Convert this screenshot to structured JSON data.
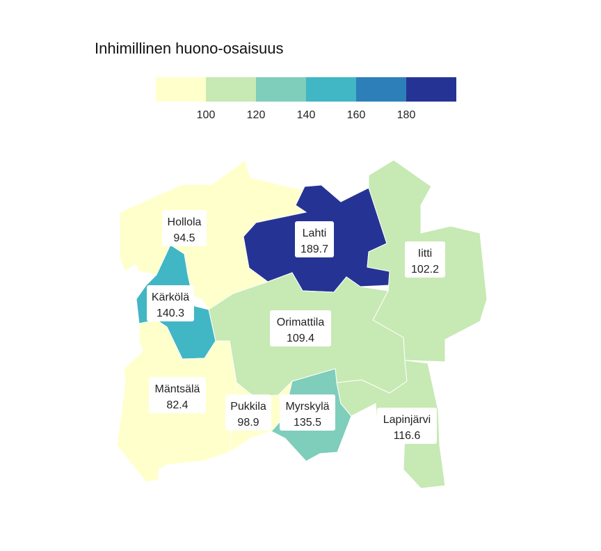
{
  "map": {
    "title": "Inhimillinen huono-osaisuus",
    "legend": {
      "colors": [
        "#ffffcc",
        "#c7e9b4",
        "#7fcdbb",
        "#41b6c4",
        "#2c7fb8",
        "#253494"
      ],
      "ticks": [
        "100",
        "120",
        "140",
        "160",
        "180"
      ]
    },
    "regions": [
      {
        "id": "hollola",
        "name": "Hollola",
        "value": "94.5",
        "color": "#ffffcc"
      },
      {
        "id": "lahti",
        "name": "Lahti",
        "value": "189.7",
        "color": "#253494"
      },
      {
        "id": "iitti",
        "name": "Iitti",
        "value": "102.2",
        "color": "#c7e9b4"
      },
      {
        "id": "karkola",
        "name": "Kärkölä",
        "value": "140.3",
        "color": "#41b6c4"
      },
      {
        "id": "orimattila",
        "name": "Orimattila",
        "value": "109.4",
        "color": "#c7e9b4"
      },
      {
        "id": "mantsala",
        "name": "Mäntsälä",
        "value": "82.4",
        "color": "#ffffcc"
      },
      {
        "id": "pukkila",
        "name": "Pukkila",
        "value": "98.9",
        "color": "#ffffcc"
      },
      {
        "id": "myrskyla",
        "name": "Myrskylä",
        "value": "135.5",
        "color": "#7fcdbb"
      },
      {
        "id": "lapinjarvi",
        "name": "Lapinjärvi",
        "value": "116.6",
        "color": "#c7e9b4"
      }
    ]
  }
}
